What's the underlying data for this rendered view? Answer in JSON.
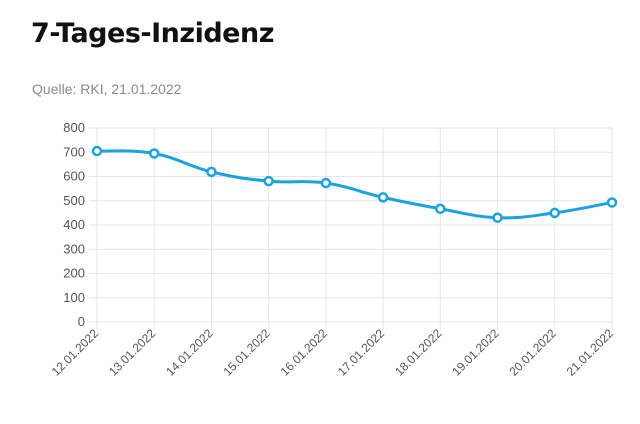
{
  "header": {
    "title": "7-Tages-Inzidenz",
    "source": "Quelle: RKI, 21.01.2022"
  },
  "chart_data": {
    "type": "line",
    "title": "7-Tages-Inzidenz",
    "xlabel": "",
    "ylabel": "",
    "categories": [
      "12.01.2022",
      "13.01.2022",
      "14.01.2022",
      "15.01.2022",
      "16.01.2022",
      "17.01.2022",
      "18.01.2022",
      "19.01.2022",
      "20.01.2022",
      "21.01.2022"
    ],
    "series": [
      {
        "values": [
          705,
          695,
          619,
          581,
          573,
          514,
          467,
          430,
          450,
          493
        ],
        "color": "#1aa3dc"
      }
    ],
    "ylim": [
      0,
      800
    ],
    "yticks": [
      "0",
      "100",
      "200",
      "300",
      "400",
      "500",
      "600",
      "700",
      "800"
    ],
    "grid": true,
    "legend": "none"
  }
}
